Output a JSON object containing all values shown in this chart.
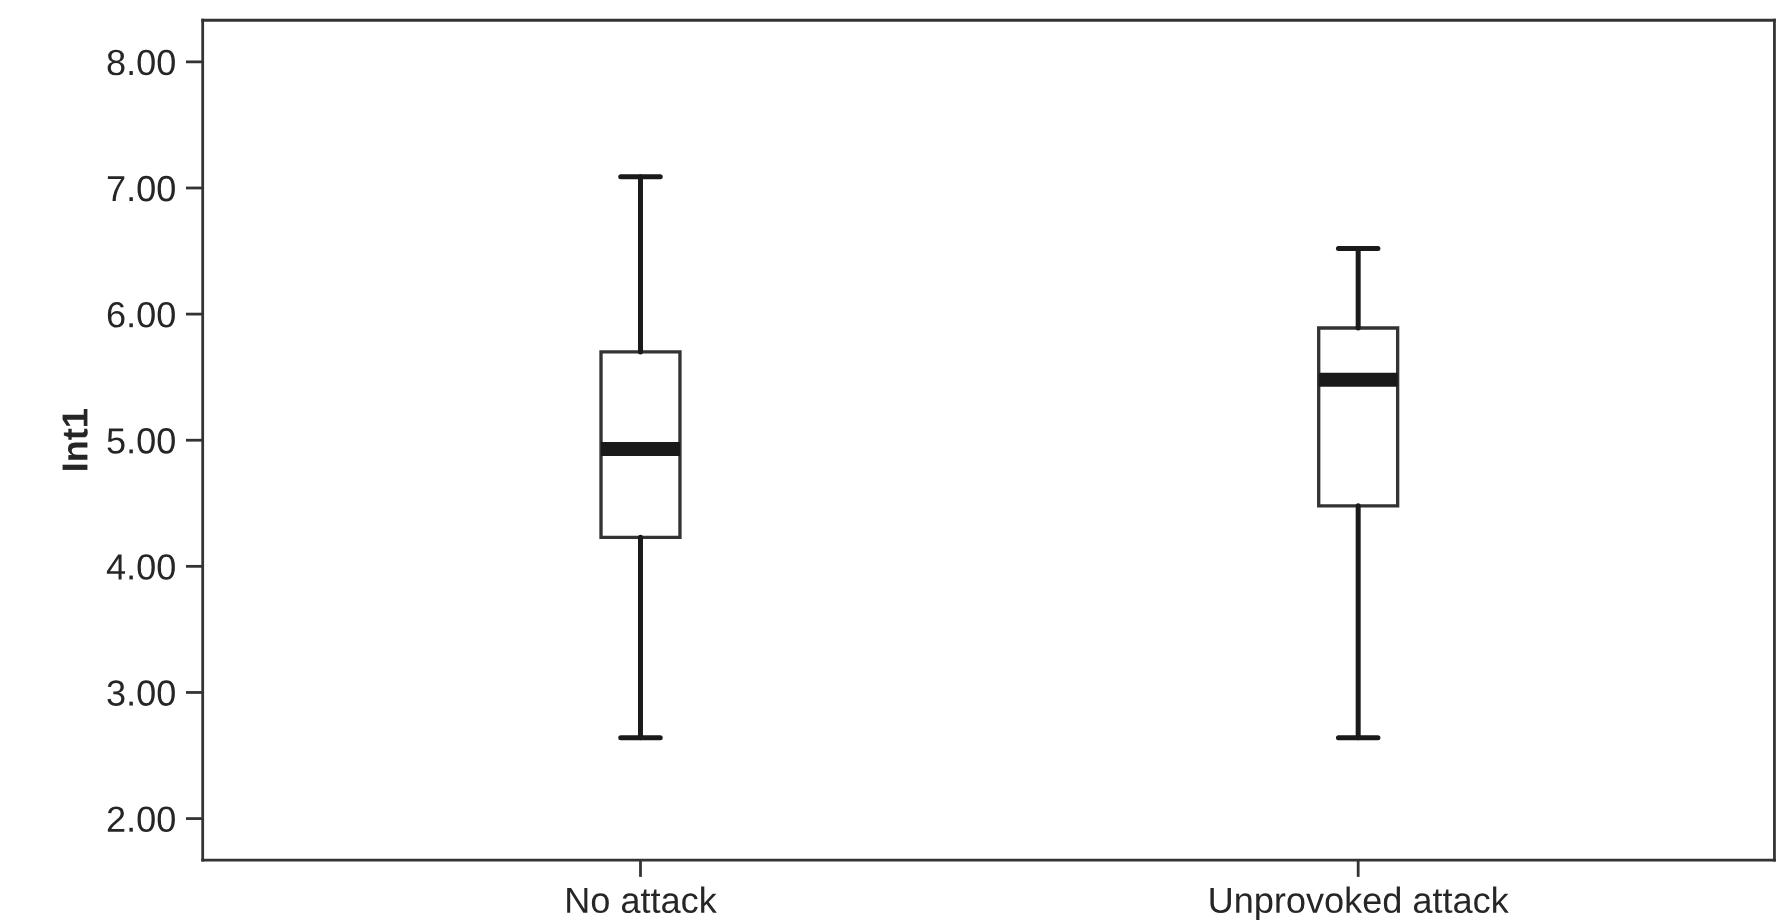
{
  "chart_data": {
    "type": "box",
    "ylabel": "Int1",
    "categories": [
      "No attack",
      "Unprovoked attack"
    ],
    "boxes": [
      {
        "low": 2.64,
        "q1": 4.23,
        "median": 4.93,
        "q3": 5.7,
        "high": 7.09
      },
      {
        "low": 2.64,
        "q1": 4.48,
        "median": 5.48,
        "q3": 5.89,
        "high": 6.52
      }
    ],
    "ylim": [
      1.67,
      8.33
    ],
    "yticks": [
      {
        "value": 2,
        "label": "2.00"
      },
      {
        "value": 3,
        "label": "3.00"
      },
      {
        "value": 4,
        "label": "4.00"
      },
      {
        "value": 5,
        "label": "5.00"
      },
      {
        "value": 6,
        "label": "6.00"
      },
      {
        "value": 7,
        "label": "7.00"
      },
      {
        "value": 8,
        "label": "8.00"
      }
    ],
    "grid": false,
    "legend": false
  }
}
